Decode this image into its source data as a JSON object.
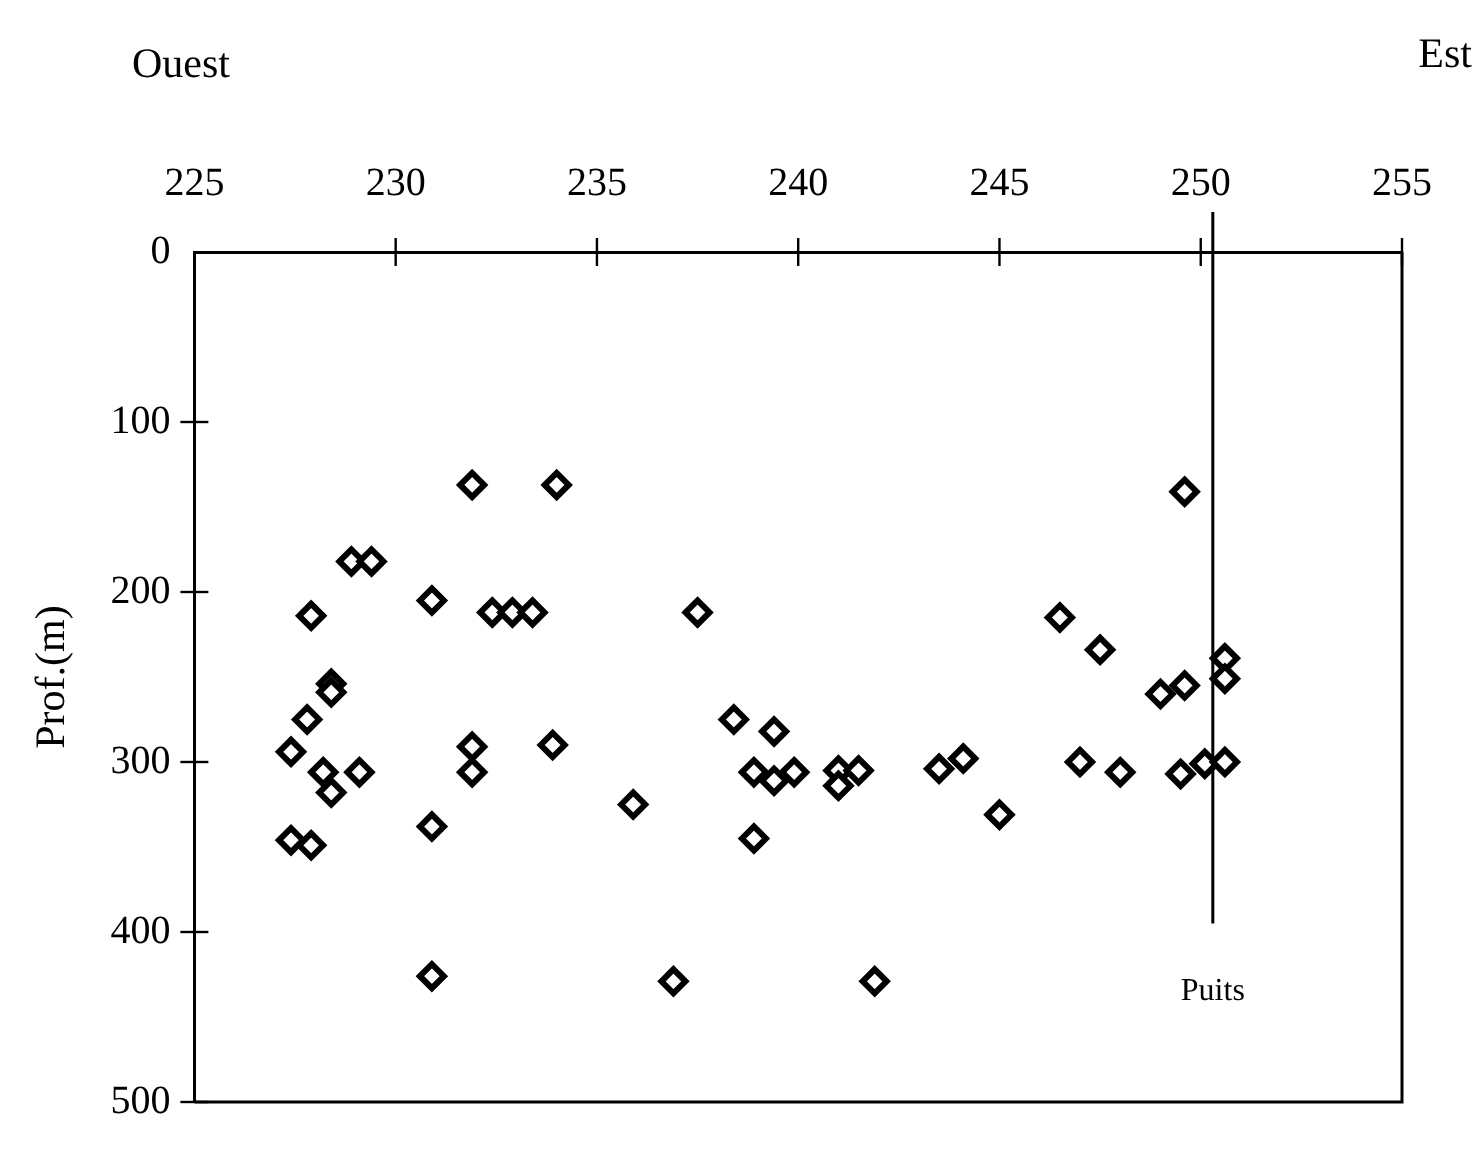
{
  "chart_data": {
    "type": "scatter",
    "ylabel": "Prof.(m)",
    "annotations": [
      "Ouest",
      "Est"
    ],
    "x": [
      231.9,
      234.0,
      228.9,
      229.4,
      227.9,
      230.9,
      232.4,
      232.9,
      233.4,
      237.5,
      249.6,
      228.4,
      228.4,
      227.8,
      227.4,
      228.2,
      229.1,
      228.4,
      227.4,
      227.9,
      230.9,
      230.9,
      231.9,
      231.9,
      233.9,
      235.9,
      236.9,
      238.4,
      239.4,
      238.9,
      239.4,
      239.9,
      238.9,
      241.0,
      241.0,
      241.5,
      243.5,
      244.1,
      245.0,
      241.9,
      246.5,
      247.5,
      249.0,
      249.6,
      250.6,
      250.6,
      247.0,
      248.0,
      249.5,
      250.1,
      250.6
    ],
    "series": [
      {
        "color": "#000000",
        "values": [
          137,
          137,
          182,
          182,
          214,
          205,
          212,
          212,
          212,
          212,
          141,
          254,
          259,
          275,
          294,
          306,
          306,
          318,
          346,
          349,
          338,
          426,
          291,
          306,
          290,
          325,
          429,
          275,
          282,
          306,
          311,
          306,
          345,
          305,
          314,
          305,
          304,
          298,
          331,
          429,
          215,
          234,
          260,
          255,
          239,
          251,
          300,
          306,
          307,
          301,
          300
        ]
      }
    ],
    "xlim": [
      225,
      255
    ],
    "xticks": [
      225,
      230,
      235,
      240,
      245,
      250,
      255
    ],
    "ylim": [
      500,
      0
    ],
    "yticks": [
      0,
      100,
      200,
      300,
      400,
      500
    ],
    "grid": false,
    "legend": false,
    "marker": "diamond",
    "ref_lines": [
      {
        "axis": "x",
        "value": 250.3,
        "label": "Puits",
        "color": "#000000"
      }
    ]
  }
}
